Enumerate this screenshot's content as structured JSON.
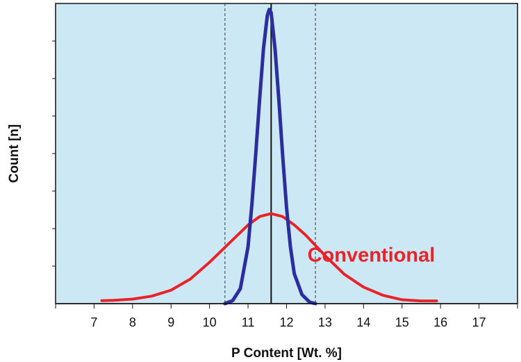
{
  "chart_data": {
    "type": "line",
    "xlabel": "P Content [Wt. %]",
    "ylabel": "Count [n]",
    "xlim": [
      6,
      18
    ],
    "ylim": [
      0,
      1
    ],
    "x_ticks": [
      7,
      8,
      9,
      10,
      11,
      12,
      13,
      14,
      15,
      16,
      17
    ],
    "grid": false,
    "plot_background": "#cce8f4",
    "series": [
      {
        "name": "Conventional",
        "color": "#e8232a",
        "x": [
          7.2,
          7.5,
          8.0,
          8.5,
          9.0,
          9.5,
          10.0,
          10.5,
          11.0,
          11.3,
          11.6,
          11.9,
          12.2,
          12.5,
          13.0,
          13.5,
          14.0,
          14.5,
          15.0,
          15.5,
          15.9
        ],
        "y": [
          0.01,
          0.011,
          0.015,
          0.025,
          0.045,
          0.082,
          0.138,
          0.2,
          0.262,
          0.29,
          0.3,
          0.29,
          0.262,
          0.228,
          0.16,
          0.098,
          0.055,
          0.028,
          0.013,
          0.009,
          0.009
        ]
      },
      {
        "name": "",
        "color": "#2b2e9c",
        "x": [
          10.4,
          10.6,
          10.8,
          11.0,
          11.1,
          11.2,
          11.3,
          11.4,
          11.5,
          11.55,
          11.6,
          11.7,
          11.8,
          11.9,
          12.0,
          12.1,
          12.2,
          12.4,
          12.6,
          12.75
        ],
        "y": [
          0.0,
          0.01,
          0.05,
          0.19,
          0.33,
          0.5,
          0.68,
          0.85,
          0.96,
          0.98,
          0.97,
          0.85,
          0.68,
          0.49,
          0.32,
          0.19,
          0.1,
          0.03,
          0.005,
          0.0
        ]
      }
    ],
    "reference_lines": {
      "solid_x": 11.6,
      "dashed_x": [
        10.4,
        12.75
      ]
    },
    "annotations": [
      {
        "text": "Conventional",
        "color": "#e8232a",
        "x": 14.2,
        "y": 0.14
      }
    ]
  }
}
